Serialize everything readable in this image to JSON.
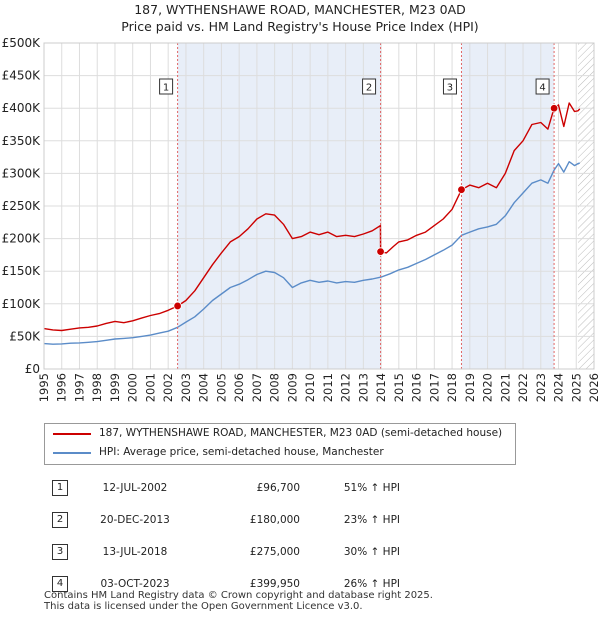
{
  "title_line1": "187, WYTHENSHAWE ROAD, MANCHESTER, M23 0AD",
  "title_line2": "Price paid vs. HM Land Registry's House Price Index (HPI)",
  "chart_data": {
    "type": "line",
    "ylim": [
      0,
      500000
    ],
    "xlim": [
      1995,
      2026
    ],
    "y_ticks": [
      {
        "value": 0,
        "label": "£0"
      },
      {
        "value": 50000,
        "label": "£50K"
      },
      {
        "value": 100000,
        "label": "£100K"
      },
      {
        "value": 150000,
        "label": "£150K"
      },
      {
        "value": 200000,
        "label": "£200K"
      },
      {
        "value": 250000,
        "label": "£250K"
      },
      {
        "value": 300000,
        "label": "£300K"
      },
      {
        "value": 350000,
        "label": "£350K"
      },
      {
        "value": 400000,
        "label": "£400K"
      },
      {
        "value": 450000,
        "label": "£450K"
      },
      {
        "value": 500000,
        "label": "£500K"
      }
    ],
    "x_ticks": [
      "1995",
      "1996",
      "1997",
      "1998",
      "1999",
      "2000",
      "2001",
      "2002",
      "2003",
      "2004",
      "2005",
      "2006",
      "2007",
      "2008",
      "2009",
      "2010",
      "2011",
      "2012",
      "2013",
      "2014",
      "2015",
      "2016",
      "2017",
      "2018",
      "2019",
      "2020",
      "2021",
      "2022",
      "2023",
      "2024",
      "2025",
      "2026"
    ],
    "hatched_from": 2025.1,
    "series": [
      {
        "name": "187, WYTHENSHAWE ROAD, MANCHESTER, M23 0AD (semi-detached house)",
        "color": "#cc0000",
        "points": [
          [
            1995.0,
            62000
          ],
          [
            1995.5,
            60000
          ],
          [
            1996.0,
            59000
          ],
          [
            1996.5,
            61000
          ],
          [
            1997.0,
            63000
          ],
          [
            1997.5,
            64000
          ],
          [
            1998.0,
            66000
          ],
          [
            1998.5,
            70000
          ],
          [
            1999.0,
            73000
          ],
          [
            1999.5,
            71000
          ],
          [
            2000.0,
            74000
          ],
          [
            2000.5,
            78000
          ],
          [
            2001.0,
            82000
          ],
          [
            2001.5,
            85000
          ],
          [
            2002.0,
            90000
          ],
          [
            2002.53,
            96700
          ],
          [
            2003.0,
            105000
          ],
          [
            2003.5,
            120000
          ],
          [
            2004.0,
            140000
          ],
          [
            2004.5,
            160000
          ],
          [
            2005.0,
            178000
          ],
          [
            2005.5,
            195000
          ],
          [
            2006.0,
            203000
          ],
          [
            2006.5,
            215000
          ],
          [
            2007.0,
            230000
          ],
          [
            2007.5,
            238000
          ],
          [
            2008.0,
            236000
          ],
          [
            2008.5,
            222000
          ],
          [
            2009.0,
            200000
          ],
          [
            2009.5,
            203000
          ],
          [
            2010.0,
            210000
          ],
          [
            2010.5,
            206000
          ],
          [
            2011.0,
            210000
          ],
          [
            2011.5,
            203000
          ],
          [
            2012.0,
            205000
          ],
          [
            2012.5,
            203000
          ],
          [
            2013.0,
            207000
          ],
          [
            2013.5,
            212000
          ],
          [
            2013.96,
            220000
          ],
          [
            2013.97,
            180000
          ],
          [
            2014.3,
            178000
          ],
          [
            2014.7,
            188000
          ],
          [
            2015.0,
            195000
          ],
          [
            2015.5,
            198000
          ],
          [
            2016.0,
            205000
          ],
          [
            2016.5,
            210000
          ],
          [
            2017.0,
            220000
          ],
          [
            2017.5,
            230000
          ],
          [
            2018.0,
            245000
          ],
          [
            2018.53,
            275000
          ],
          [
            2019.0,
            282000
          ],
          [
            2019.5,
            278000
          ],
          [
            2020.0,
            285000
          ],
          [
            2020.5,
            278000
          ],
          [
            2021.0,
            300000
          ],
          [
            2021.5,
            335000
          ],
          [
            2022.0,
            350000
          ],
          [
            2022.5,
            375000
          ],
          [
            2023.0,
            378000
          ],
          [
            2023.4,
            368000
          ],
          [
            2023.75,
            399950
          ],
          [
            2024.0,
            405000
          ],
          [
            2024.3,
            372000
          ],
          [
            2024.6,
            408000
          ],
          [
            2024.9,
            395000
          ],
          [
            2025.1,
            396000
          ],
          [
            2025.2,
            399000
          ]
        ]
      },
      {
        "name": "HPI: Average price, semi-detached house, Manchester",
        "color": "#5b8cc8",
        "points": [
          [
            1995.0,
            39000
          ],
          [
            1995.5,
            38000
          ],
          [
            1996.0,
            38500
          ],
          [
            1996.5,
            39500
          ],
          [
            1997.0,
            40000
          ],
          [
            1997.5,
            41000
          ],
          [
            1998.0,
            42000
          ],
          [
            1998.5,
            44000
          ],
          [
            1999.0,
            46000
          ],
          [
            1999.5,
            47000
          ],
          [
            2000.0,
            48000
          ],
          [
            2000.5,
            50000
          ],
          [
            2001.0,
            52000
          ],
          [
            2001.5,
            55000
          ],
          [
            2002.0,
            58000
          ],
          [
            2002.53,
            64000
          ],
          [
            2003.0,
            72000
          ],
          [
            2003.5,
            80000
          ],
          [
            2004.0,
            92000
          ],
          [
            2004.5,
            105000
          ],
          [
            2005.0,
            115000
          ],
          [
            2005.5,
            125000
          ],
          [
            2006.0,
            130000
          ],
          [
            2006.5,
            137000
          ],
          [
            2007.0,
            145000
          ],
          [
            2007.5,
            150000
          ],
          [
            2008.0,
            148000
          ],
          [
            2008.5,
            140000
          ],
          [
            2009.0,
            125000
          ],
          [
            2009.5,
            132000
          ],
          [
            2010.0,
            136000
          ],
          [
            2010.5,
            133000
          ],
          [
            2011.0,
            135000
          ],
          [
            2011.5,
            132000
          ],
          [
            2012.0,
            134000
          ],
          [
            2012.5,
            133000
          ],
          [
            2013.0,
            136000
          ],
          [
            2013.5,
            138000
          ],
          [
            2014.0,
            141000
          ],
          [
            2014.5,
            146000
          ],
          [
            2015.0,
            152000
          ],
          [
            2015.5,
            156000
          ],
          [
            2016.0,
            162000
          ],
          [
            2016.5,
            168000
          ],
          [
            2017.0,
            175000
          ],
          [
            2017.5,
            182000
          ],
          [
            2018.0,
            190000
          ],
          [
            2018.53,
            205000
          ],
          [
            2019.0,
            210000
          ],
          [
            2019.5,
            215000
          ],
          [
            2020.0,
            218000
          ],
          [
            2020.5,
            222000
          ],
          [
            2021.0,
            235000
          ],
          [
            2021.5,
            255000
          ],
          [
            2022.0,
            270000
          ],
          [
            2022.5,
            285000
          ],
          [
            2023.0,
            290000
          ],
          [
            2023.4,
            285000
          ],
          [
            2023.75,
            305000
          ],
          [
            2024.0,
            315000
          ],
          [
            2024.3,
            302000
          ],
          [
            2024.6,
            318000
          ],
          [
            2024.9,
            312000
          ],
          [
            2025.1,
            315000
          ],
          [
            2025.2,
            316000
          ]
        ]
      }
    ],
    "sales": [
      {
        "n": "1",
        "x": 2002.53,
        "value": 96700
      },
      {
        "n": "2",
        "x": 2013.97,
        "value": 180000
      },
      {
        "n": "3",
        "x": 2018.53,
        "value": 275000
      },
      {
        "n": "4",
        "x": 2023.75,
        "value": 399950
      }
    ]
  },
  "legend": {
    "red_label": "187, WYTHENSHAWE ROAD, MANCHESTER, M23 0AD (semi-detached house)",
    "blue_label": "HPI: Average price, semi-detached house, Manchester"
  },
  "sales_table": [
    {
      "n": "1",
      "date": "12-JUL-2002",
      "price": "£96,700",
      "hpi": "51% ↑ HPI"
    },
    {
      "n": "2",
      "date": "20-DEC-2013",
      "price": "£180,000",
      "hpi": "23% ↑ HPI"
    },
    {
      "n": "3",
      "date": "13-JUL-2018",
      "price": "£275,000",
      "hpi": "30% ↑ HPI"
    },
    {
      "n": "4",
      "date": "03-OCT-2023",
      "price": "£399,950",
      "hpi": "26% ↑ HPI"
    }
  ],
  "footer": {
    "line1": "Contains HM Land Registry data © Crown copyright and database right 2025.",
    "line2": "This data is licensed under the Open Government Licence v3.0."
  },
  "colors": {
    "red": "#cc0000",
    "blue": "#5b8cc8",
    "shade": "#e8eef8"
  }
}
